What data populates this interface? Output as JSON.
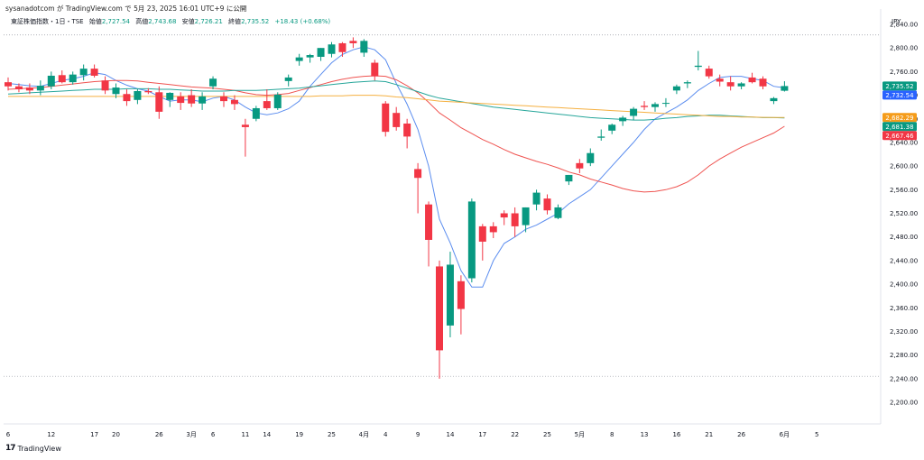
{
  "header": {
    "attribution": "sysanadotcom が TradingView.com で 5月 23, 2025 16:01 UTC+9 に公開",
    "symbol": "東証株価指数・1日・TSE",
    "open_label": "始値",
    "open_value": "2,727.54",
    "high_label": "高値",
    "high_value": "2,743.68",
    "low_label": "安値",
    "low_value": "2,726.21",
    "close_label": "終値",
    "close_value": "2,735.52",
    "change": "+18.43 (+0.68%)"
  },
  "currency": "JPY",
  "footer": {
    "logo": "17",
    "brand": "TradingView"
  },
  "colors": {
    "up": "#089981",
    "down": "#f23645",
    "ma5": "#5b8def",
    "ma25": "#ef5350",
    "ma75": "#26a69a",
    "ma200": "#f5b041"
  },
  "chart_data": {
    "type": "candlestick",
    "title": "東証株価指数・1日・TSE",
    "ylim": [
      2180,
      2880
    ],
    "ytick_labels": [
      "2,840.00",
      "2,800.00",
      "2,760.00",
      "2,720.00",
      "2,680.00",
      "2,640.00",
      "2,600.00",
      "2,560.00",
      "2,520.00",
      "2,480.00",
      "2,440.00",
      "2,400.00",
      "2,360.00",
      "2,320.00",
      "2,280.00",
      "2,240.00",
      "2,200.00"
    ],
    "ytick_values": [
      2840,
      2800,
      2760,
      2720,
      2680,
      2640,
      2600,
      2560,
      2520,
      2480,
      2440,
      2400,
      2360,
      2320,
      2280,
      2240,
      2200
    ],
    "dotted_levels": [
      2822,
      2244
    ],
    "xtick_labels": [
      "6",
      "12",
      "17",
      "20",
      "26",
      "3月",
      "6",
      "11",
      "14",
      "19",
      "25",
      "4月",
      "4",
      "9",
      "14",
      "17",
      "22",
      "25",
      "5月",
      "8",
      "13",
      "16",
      "21",
      "26",
      "6月",
      "5"
    ],
    "xtick_index": [
      0,
      4,
      8,
      10,
      14,
      17,
      19,
      22,
      24,
      27,
      30,
      33,
      35,
      38,
      41,
      44,
      47,
      50,
      53,
      56,
      59,
      62,
      65,
      68,
      72,
      75
    ],
    "candles": [
      {
        "o": 2742,
        "h": 2750,
        "l": 2728,
        "c": 2735
      },
      {
        "o": 2735,
        "h": 2740,
        "l": 2725,
        "c": 2730
      },
      {
        "o": 2733,
        "h": 2740,
        "l": 2722,
        "c": 2728
      },
      {
        "o": 2728,
        "h": 2745,
        "l": 2720,
        "c": 2736
      },
      {
        "o": 2735,
        "h": 2760,
        "l": 2730,
        "c": 2753
      },
      {
        "o": 2754,
        "h": 2762,
        "l": 2740,
        "c": 2742
      },
      {
        "o": 2742,
        "h": 2760,
        "l": 2738,
        "c": 2755
      },
      {
        "o": 2754,
        "h": 2772,
        "l": 2745,
        "c": 2765
      },
      {
        "o": 2765,
        "h": 2772,
        "l": 2750,
        "c": 2753
      },
      {
        "o": 2745,
        "h": 2752,
        "l": 2722,
        "c": 2728
      },
      {
        "o": 2722,
        "h": 2740,
        "l": 2715,
        "c": 2733
      },
      {
        "o": 2722,
        "h": 2730,
        "l": 2702,
        "c": 2710
      },
      {
        "o": 2712,
        "h": 2730,
        "l": 2705,
        "c": 2727
      },
      {
        "o": 2727,
        "h": 2732,
        "l": 2722,
        "c": 2725
      },
      {
        "o": 2725,
        "h": 2735,
        "l": 2680,
        "c": 2692
      },
      {
        "o": 2712,
        "h": 2725,
        "l": 2700,
        "c": 2724
      },
      {
        "o": 2718,
        "h": 2725,
        "l": 2695,
        "c": 2707
      },
      {
        "o": 2720,
        "h": 2730,
        "l": 2700,
        "c": 2706
      },
      {
        "o": 2706,
        "h": 2725,
        "l": 2695,
        "c": 2718
      },
      {
        "o": 2735,
        "h": 2752,
        "l": 2730,
        "c": 2748
      },
      {
        "o": 2718,
        "h": 2725,
        "l": 2700,
        "c": 2710
      },
      {
        "o": 2712,
        "h": 2720,
        "l": 2695,
        "c": 2705
      },
      {
        "o": 2670,
        "h": 2680,
        "l": 2616,
        "c": 2666
      },
      {
        "o": 2680,
        "h": 2702,
        "l": 2676,
        "c": 2698
      },
      {
        "o": 2710,
        "h": 2730,
        "l": 2695,
        "c": 2698
      },
      {
        "o": 2698,
        "h": 2725,
        "l": 2695,
        "c": 2721
      },
      {
        "o": 2744,
        "h": 2755,
        "l": 2735,
        "c": 2750
      },
      {
        "o": 2778,
        "h": 2790,
        "l": 2770,
        "c": 2784
      },
      {
        "o": 2784,
        "h": 2790,
        "l": 2775,
        "c": 2788
      },
      {
        "o": 2785,
        "h": 2800,
        "l": 2778,
        "c": 2800
      },
      {
        "o": 2790,
        "h": 2810,
        "l": 2784,
        "c": 2806
      },
      {
        "o": 2808,
        "h": 2810,
        "l": 2785,
        "c": 2793
      },
      {
        "o": 2812,
        "h": 2818,
        "l": 2800,
        "c": 2808
      },
      {
        "o": 2792,
        "h": 2815,
        "l": 2785,
        "c": 2812
      },
      {
        "o": 2775,
        "h": 2780,
        "l": 2745,
        "c": 2752
      },
      {
        "o": 2706,
        "h": 2710,
        "l": 2650,
        "c": 2658
      },
      {
        "o": 2690,
        "h": 2700,
        "l": 2660,
        "c": 2666
      },
      {
        "o": 2672,
        "h": 2680,
        "l": 2630,
        "c": 2650
      },
      {
        "o": 2595,
        "h": 2605,
        "l": 2520,
        "c": 2580
      },
      {
        "o": 2535,
        "h": 2540,
        "l": 2430,
        "c": 2475
      },
      {
        "o": 2430,
        "h": 2440,
        "l": 2240,
        "c": 2288
      },
      {
        "o": 2330,
        "h": 2455,
        "l": 2310,
        "c": 2433
      },
      {
        "o": 2405,
        "h": 2415,
        "l": 2315,
        "c": 2358
      },
      {
        "o": 2410,
        "h": 2545,
        "l": 2403,
        "c": 2540
      },
      {
        "o": 2498,
        "h": 2502,
        "l": 2440,
        "c": 2472
      },
      {
        "o": 2498,
        "h": 2505,
        "l": 2478,
        "c": 2488
      },
      {
        "o": 2520,
        "h": 2525,
        "l": 2500,
        "c": 2513
      },
      {
        "o": 2520,
        "h": 2530,
        "l": 2480,
        "c": 2498
      },
      {
        "o": 2500,
        "h": 2530,
        "l": 2488,
        "c": 2530
      },
      {
        "o": 2535,
        "h": 2560,
        "l": 2525,
        "c": 2555
      },
      {
        "o": 2545,
        "h": 2552,
        "l": 2518,
        "c": 2525
      },
      {
        "o": 2512,
        "h": 2535,
        "l": 2510,
        "c": 2530
      },
      {
        "o": 2574,
        "h": 2585,
        "l": 2568,
        "c": 2585
      },
      {
        "o": 2605,
        "h": 2612,
        "l": 2588,
        "c": 2596
      },
      {
        "o": 2605,
        "h": 2630,
        "l": 2600,
        "c": 2622
      },
      {
        "o": 2648,
        "h": 2662,
        "l": 2643,
        "c": 2650
      },
      {
        "o": 2660,
        "h": 2672,
        "l": 2654,
        "c": 2670
      },
      {
        "o": 2676,
        "h": 2685,
        "l": 2668,
        "c": 2682
      },
      {
        "o": 2685,
        "h": 2700,
        "l": 2678,
        "c": 2697
      },
      {
        "o": 2702,
        "h": 2710,
        "l": 2695,
        "c": 2700
      },
      {
        "o": 2700,
        "h": 2708,
        "l": 2692,
        "c": 2705
      },
      {
        "o": 2706,
        "h": 2715,
        "l": 2700,
        "c": 2707
      },
      {
        "o": 2728,
        "h": 2738,
        "l": 2722,
        "c": 2735
      },
      {
        "o": 2740,
        "h": 2745,
        "l": 2732,
        "c": 2742
      },
      {
        "o": 2768,
        "h": 2795,
        "l": 2762,
        "c": 2770
      },
      {
        "o": 2765,
        "h": 2770,
        "l": 2748,
        "c": 2752
      },
      {
        "o": 2748,
        "h": 2755,
        "l": 2735,
        "c": 2743
      },
      {
        "o": 2742,
        "h": 2752,
        "l": 2728,
        "c": 2735
      },
      {
        "o": 2735,
        "h": 2742,
        "l": 2730,
        "c": 2740
      },
      {
        "o": 2750,
        "h": 2758,
        "l": 2740,
        "c": 2742
      },
      {
        "o": 2748,
        "h": 2752,
        "l": 2730,
        "c": 2735
      },
      {
        "o": 2710,
        "h": 2717,
        "l": 2705,
        "c": 2715
      },
      {
        "o": 2727.54,
        "h": 2743.68,
        "l": 2726.21,
        "c": 2735.52
      }
    ],
    "series": [
      {
        "name": "MA5",
        "color": "#5b8def",
        "last_label": "2,732.54",
        "values": [
          2740,
          2738,
          2736,
          2735,
          2740,
          2745,
          2748,
          2752,
          2758,
          2755,
          2745,
          2737,
          2731,
          2727,
          2718,
          2710,
          2712,
          2712,
          2709,
          2715,
          2718,
          2712,
          2700,
          2690,
          2687,
          2690,
          2697,
          2710,
          2735,
          2755,
          2775,
          2789,
          2797,
          2802,
          2797,
          2780,
          2740,
          2705,
          2662,
          2600,
          2510,
          2470,
          2423,
          2395,
          2395,
          2440,
          2469,
          2480,
          2493,
          2500,
          2510,
          2520,
          2536,
          2548,
          2560,
          2580,
          2600,
          2620,
          2640,
          2662,
          2680,
          2690,
          2700,
          2712,
          2728,
          2740,
          2750,
          2752,
          2752,
          2748,
          2745,
          2735,
          2732.54
        ]
      },
      {
        "name": "MA25",
        "color": "#ef5350",
        "last_label": "2,667.46",
        "values": [
          2730,
          2731,
          2732,
          2733,
          2735,
          2737,
          2739,
          2741,
          2743,
          2744,
          2745,
          2745,
          2744,
          2742,
          2740,
          2738,
          2736,
          2734,
          2733,
          2732,
          2730,
          2728,
          2724,
          2721,
          2720,
          2721,
          2723,
          2728,
          2733,
          2738,
          2743,
          2747,
          2750,
          2752,
          2753,
          2752,
          2746,
          2736,
          2724,
          2708,
          2690,
          2678,
          2665,
          2655,
          2645,
          2637,
          2628,
          2620,
          2614,
          2608,
          2603,
          2597,
          2590,
          2585,
          2578,
          2573,
          2568,
          2562,
          2558,
          2556,
          2557,
          2560,
          2565,
          2573,
          2585,
          2600,
          2612,
          2622,
          2632,
          2640,
          2648,
          2656,
          2667.46
        ]
      },
      {
        "name": "MA75",
        "color": "#26a69a",
        "last_label": "2,681.38",
        "values": [
          2722,
          2723,
          2724,
          2725,
          2726,
          2727,
          2728,
          2729,
          2730,
          2730,
          2730,
          2731,
          2731,
          2731,
          2730,
          2730,
          2729,
          2728,
          2727,
          2727,
          2727,
          2728,
          2728,
          2728,
          2729,
          2730,
          2731,
          2732,
          2734,
          2736,
          2738,
          2740,
          2742,
          2743,
          2744,
          2743,
          2738,
          2732,
          2726,
          2720,
          2715,
          2712,
          2709,
          2706,
          2703,
          2700,
          2698,
          2696,
          2694,
          2692,
          2690,
          2688,
          2686,
          2684,
          2682,
          2681,
          2680,
          2679,
          2678,
          2678,
          2679,
          2681,
          2682,
          2684,
          2685,
          2686,
          2686,
          2685,
          2684,
          2683,
          2682,
          2682,
          2681.38
        ]
      },
      {
        "name": "MA200",
        "color": "#f5b041",
        "last_label": "2,682.29",
        "values": [
          2718,
          2718,
          2718,
          2718,
          2718,
          2718,
          2718,
          2718,
          2718,
          2718,
          2718,
          2718,
          2718,
          2718,
          2718,
          2718,
          2718,
          2718,
          2718,
          2718,
          2718,
          2718,
          2718,
          2718,
          2718,
          2718,
          2718,
          2718,
          2718,
          2719,
          2719,
          2719,
          2720,
          2720,
          2720,
          2719,
          2717,
          2716,
          2714,
          2712,
          2710,
          2709,
          2708,
          2707,
          2706,
          2705,
          2704,
          2703,
          2702,
          2701,
          2700,
          2699,
          2698,
          2697,
          2696,
          2695,
          2694,
          2693,
          2692,
          2691,
          2690,
          2689,
          2688,
          2687,
          2686,
          2685,
          2684,
          2684,
          2683,
          2683,
          2682.5,
          2682.4,
          2682.29
        ]
      }
    ],
    "price_labels": [
      {
        "text": "2,735.52",
        "value": 2735.52,
        "color": "#089981"
      },
      {
        "text": "2,732.54",
        "value": 2732.54,
        "color": "#2962ff"
      },
      {
        "text": "2,682.29",
        "value": 2682.29,
        "color": "#f59c1a"
      },
      {
        "text": "2,681.38",
        "value": 2681.38,
        "color": "#089981"
      },
      {
        "text": "2,667.46",
        "value": 2667.46,
        "color": "#f23645"
      }
    ]
  }
}
